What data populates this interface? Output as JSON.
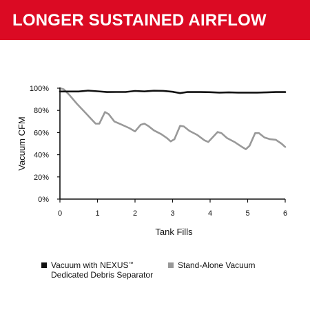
{
  "banner": {
    "title": "LONGER SUSTAINED AIRFLOW",
    "color": "#db0a23"
  },
  "chart_data": {
    "type": "line",
    "title": "",
    "xlabel": "Tank Fills",
    "ylabel": "Vacuum CFM",
    "xlim": [
      0,
      6
    ],
    "ylim": [
      0,
      100
    ],
    "x_ticks": [
      "0",
      "1",
      "2",
      "3",
      "4",
      "5",
      "6"
    ],
    "y_ticks": [
      "0%",
      "20%",
      "40%",
      "60%",
      "80%",
      "100%"
    ],
    "grid": false,
    "legend_position": "bottom",
    "series": [
      {
        "name": "Vacuum with NEXUS™ Dedicated Debris Separator",
        "color": "#111111",
        "points": [
          [
            0,
            97
          ],
          [
            0.5,
            97
          ],
          [
            0.75,
            97.8
          ],
          [
            1,
            97.2
          ],
          [
            1.25,
            96.5
          ],
          [
            1.5,
            96.6
          ],
          [
            1.75,
            96.6
          ],
          [
            2,
            97.5
          ],
          [
            2.25,
            97.1
          ],
          [
            2.5,
            97.7
          ],
          [
            2.75,
            97.6
          ],
          [
            3,
            96.8
          ],
          [
            3.2,
            95.5
          ],
          [
            3.4,
            96.6
          ],
          [
            3.75,
            96.5
          ],
          [
            4,
            96.4
          ],
          [
            4.25,
            96
          ],
          [
            4.5,
            96.2
          ],
          [
            4.75,
            96
          ],
          [
            5,
            96
          ],
          [
            5.25,
            96
          ],
          [
            5.5,
            96.2
          ],
          [
            5.75,
            96.5
          ],
          [
            6,
            96.5
          ]
        ]
      },
      {
        "name": "Stand-Alone Vacuum",
        "color": "#999999",
        "points": [
          [
            0,
            100
          ],
          [
            0.1,
            99
          ],
          [
            0.25,
            94
          ],
          [
            0.45,
            86
          ],
          [
            0.7,
            77
          ],
          [
            0.95,
            68
          ],
          [
            1.05,
            68
          ],
          [
            1.2,
            78.5
          ],
          [
            1.3,
            76.5
          ],
          [
            1.45,
            70
          ],
          [
            1.65,
            67
          ],
          [
            1.85,
            64
          ],
          [
            2.0,
            61
          ],
          [
            2.15,
            67
          ],
          [
            2.25,
            68
          ],
          [
            2.35,
            66
          ],
          [
            2.5,
            62
          ],
          [
            2.7,
            58.5
          ],
          [
            2.85,
            55
          ],
          [
            2.95,
            52
          ],
          [
            3.05,
            54
          ],
          [
            3.2,
            66
          ],
          [
            3.3,
            65.5
          ],
          [
            3.45,
            61.5
          ],
          [
            3.65,
            58
          ],
          [
            3.85,
            53
          ],
          [
            3.95,
            51.5
          ],
          [
            4.05,
            55
          ],
          [
            4.2,
            60.5
          ],
          [
            4.3,
            59.5
          ],
          [
            4.45,
            55
          ],
          [
            4.65,
            51.5
          ],
          [
            4.85,
            47
          ],
          [
            4.95,
            45
          ],
          [
            5.05,
            48
          ],
          [
            5.2,
            59.5
          ],
          [
            5.3,
            59.5
          ],
          [
            5.45,
            55.5
          ],
          [
            5.6,
            54
          ],
          [
            5.75,
            53.5
          ],
          [
            5.9,
            50
          ],
          [
            6,
            47
          ]
        ]
      }
    ]
  },
  "legend": {
    "items": [
      {
        "line1": "Vacuum with NEXUS",
        "trademark": "™",
        "line2": "Dedicated Debris Separator",
        "color": "#111111"
      },
      {
        "line1": "Stand-Alone Vacuum",
        "color": "#999999"
      }
    ]
  }
}
